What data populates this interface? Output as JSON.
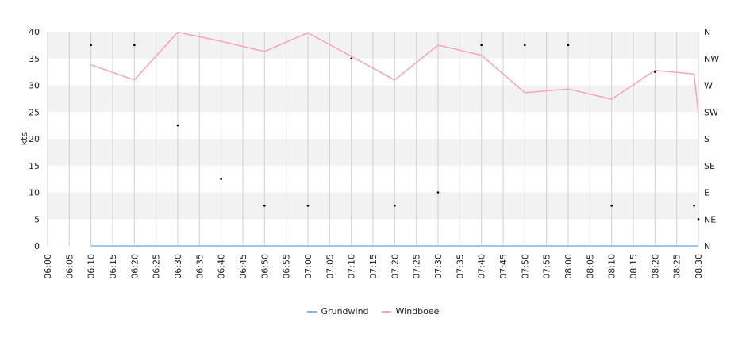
{
  "chart_data": {
    "type": "line",
    "x": [
      "06:00",
      "06:05",
      "06:10",
      "06:15",
      "06:20",
      "06:25",
      "06:30",
      "06:35",
      "06:40",
      "06:45",
      "06:50",
      "06:55",
      "07:00",
      "07:05",
      "07:10",
      "07:15",
      "07:20",
      "07:25",
      "07:30",
      "07:35",
      "07:40",
      "07:45",
      "07:50",
      "07:55",
      "08:00",
      "08:05",
      "08:10",
      "08:15",
      "08:20",
      "08:25",
      "08:30"
    ],
    "ylabel": "kts",
    "ylim": [
      0,
      40
    ],
    "yticks": [
      0,
      5,
      10,
      15,
      20,
      25,
      30,
      35,
      40
    ],
    "y2_ticks": [
      "N",
      "NE",
      "E",
      "SE",
      "S",
      "SW",
      "W",
      "NW",
      "N"
    ],
    "grid": true,
    "legend_position": "bottom",
    "series": [
      {
        "name": "Grundwind",
        "color": "#7cb5ec",
        "points": [
          [
            "06:10",
            0
          ],
          [
            "06:20",
            0
          ],
          [
            "06:30",
            0
          ],
          [
            "06:40",
            0
          ],
          [
            "06:50",
            0
          ],
          [
            "07:00",
            0
          ],
          [
            "07:10",
            0
          ],
          [
            "07:20",
            0
          ],
          [
            "07:30",
            0
          ],
          [
            "07:40",
            0
          ],
          [
            "07:50",
            0
          ],
          [
            "08:00",
            0
          ],
          [
            "08:10",
            0
          ],
          [
            "08:20",
            0
          ],
          [
            "08:29",
            0
          ],
          [
            "08:30",
            0
          ]
        ]
      },
      {
        "name": "Windboee",
        "color": "#f7a1c4",
        "points": [
          [
            "06:10",
            33.8
          ],
          [
            "06:20",
            31
          ],
          [
            "06:30",
            39.9
          ],
          [
            "06:40",
            38.2
          ],
          [
            "06:50",
            36.3
          ],
          [
            "07:00",
            39.8
          ],
          [
            "07:10",
            35.4
          ],
          [
            "07:20",
            31
          ],
          [
            "07:30",
            37.5
          ],
          [
            "07:40",
            35.6
          ],
          [
            "07:50",
            28.6
          ],
          [
            "08:00",
            29.3
          ],
          [
            "08:10",
            27.4
          ],
          [
            "08:20",
            32.8
          ],
          [
            "08:29",
            32.1
          ],
          [
            "08:30",
            24.7
          ]
        ]
      }
    ],
    "direction_markers": [
      {
        "x": "06:10",
        "dir": "NNW"
      },
      {
        "x": "06:20",
        "dir": "NNW"
      },
      {
        "x": "06:30",
        "dir": "SSW"
      },
      {
        "x": "06:40",
        "dir": "ESE"
      },
      {
        "x": "06:50",
        "dir": "ENE"
      },
      {
        "x": "07:00",
        "dir": "ENE"
      },
      {
        "x": "07:10",
        "dir": "NW"
      },
      {
        "x": "07:20",
        "dir": "ENE"
      },
      {
        "x": "07:30",
        "dir": "E"
      },
      {
        "x": "07:40",
        "dir": "NNW"
      },
      {
        "x": "07:50",
        "dir": "NNW"
      },
      {
        "x": "08:00",
        "dir": "NNW"
      },
      {
        "x": "08:10",
        "dir": "ENE"
      },
      {
        "x": "08:20",
        "dir": "WNW"
      },
      {
        "x": "08:29",
        "dir": "ENE"
      },
      {
        "x": "08:30",
        "dir": "NE"
      }
    ]
  }
}
